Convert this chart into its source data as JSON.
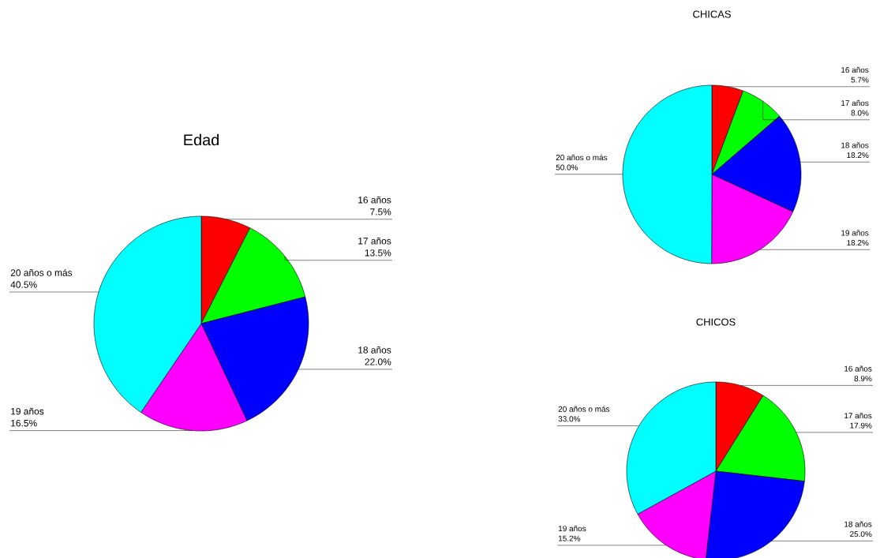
{
  "chart_data": [
    {
      "type": "pie",
      "title": "Edad",
      "categories": [
        "16 años",
        "17 años",
        "18 años",
        "19 años",
        "20 años o más"
      ],
      "values": [
        7.5,
        13.5,
        22.0,
        16.5,
        40.5
      ],
      "value_labels": [
        "7.5%",
        "13.5%",
        "22.0%",
        "16.5%",
        "40.5%"
      ],
      "colors": [
        "#ff0000",
        "#00ff00",
        "#0000ff",
        "#ff00ff",
        "#00ffff"
      ]
    },
    {
      "type": "pie",
      "title": "CHICAS",
      "categories": [
        "16 años",
        "17 años",
        "18 años",
        "19 años",
        "20 años o más"
      ],
      "values": [
        5.7,
        8.0,
        18.2,
        18.2,
        50.0
      ],
      "value_labels": [
        "5.7%",
        "8.0%",
        "18.2%",
        "18.2%",
        "50.0%"
      ],
      "colors": [
        "#ff0000",
        "#00ff00",
        "#0000ff",
        "#ff00ff",
        "#00ffff"
      ]
    },
    {
      "type": "pie",
      "title": "CHICOS",
      "categories": [
        "16 años",
        "17 años",
        "18 años",
        "19 años",
        "20 años o más"
      ],
      "values": [
        8.9,
        17.9,
        25.0,
        15.2,
        33.0
      ],
      "value_labels": [
        "8.9%",
        "17.9%",
        "25.0%",
        "15.2%",
        "33.0%"
      ],
      "colors": [
        "#ff0000",
        "#00ff00",
        "#0000ff",
        "#ff00ff",
        "#00ffff"
      ]
    }
  ]
}
